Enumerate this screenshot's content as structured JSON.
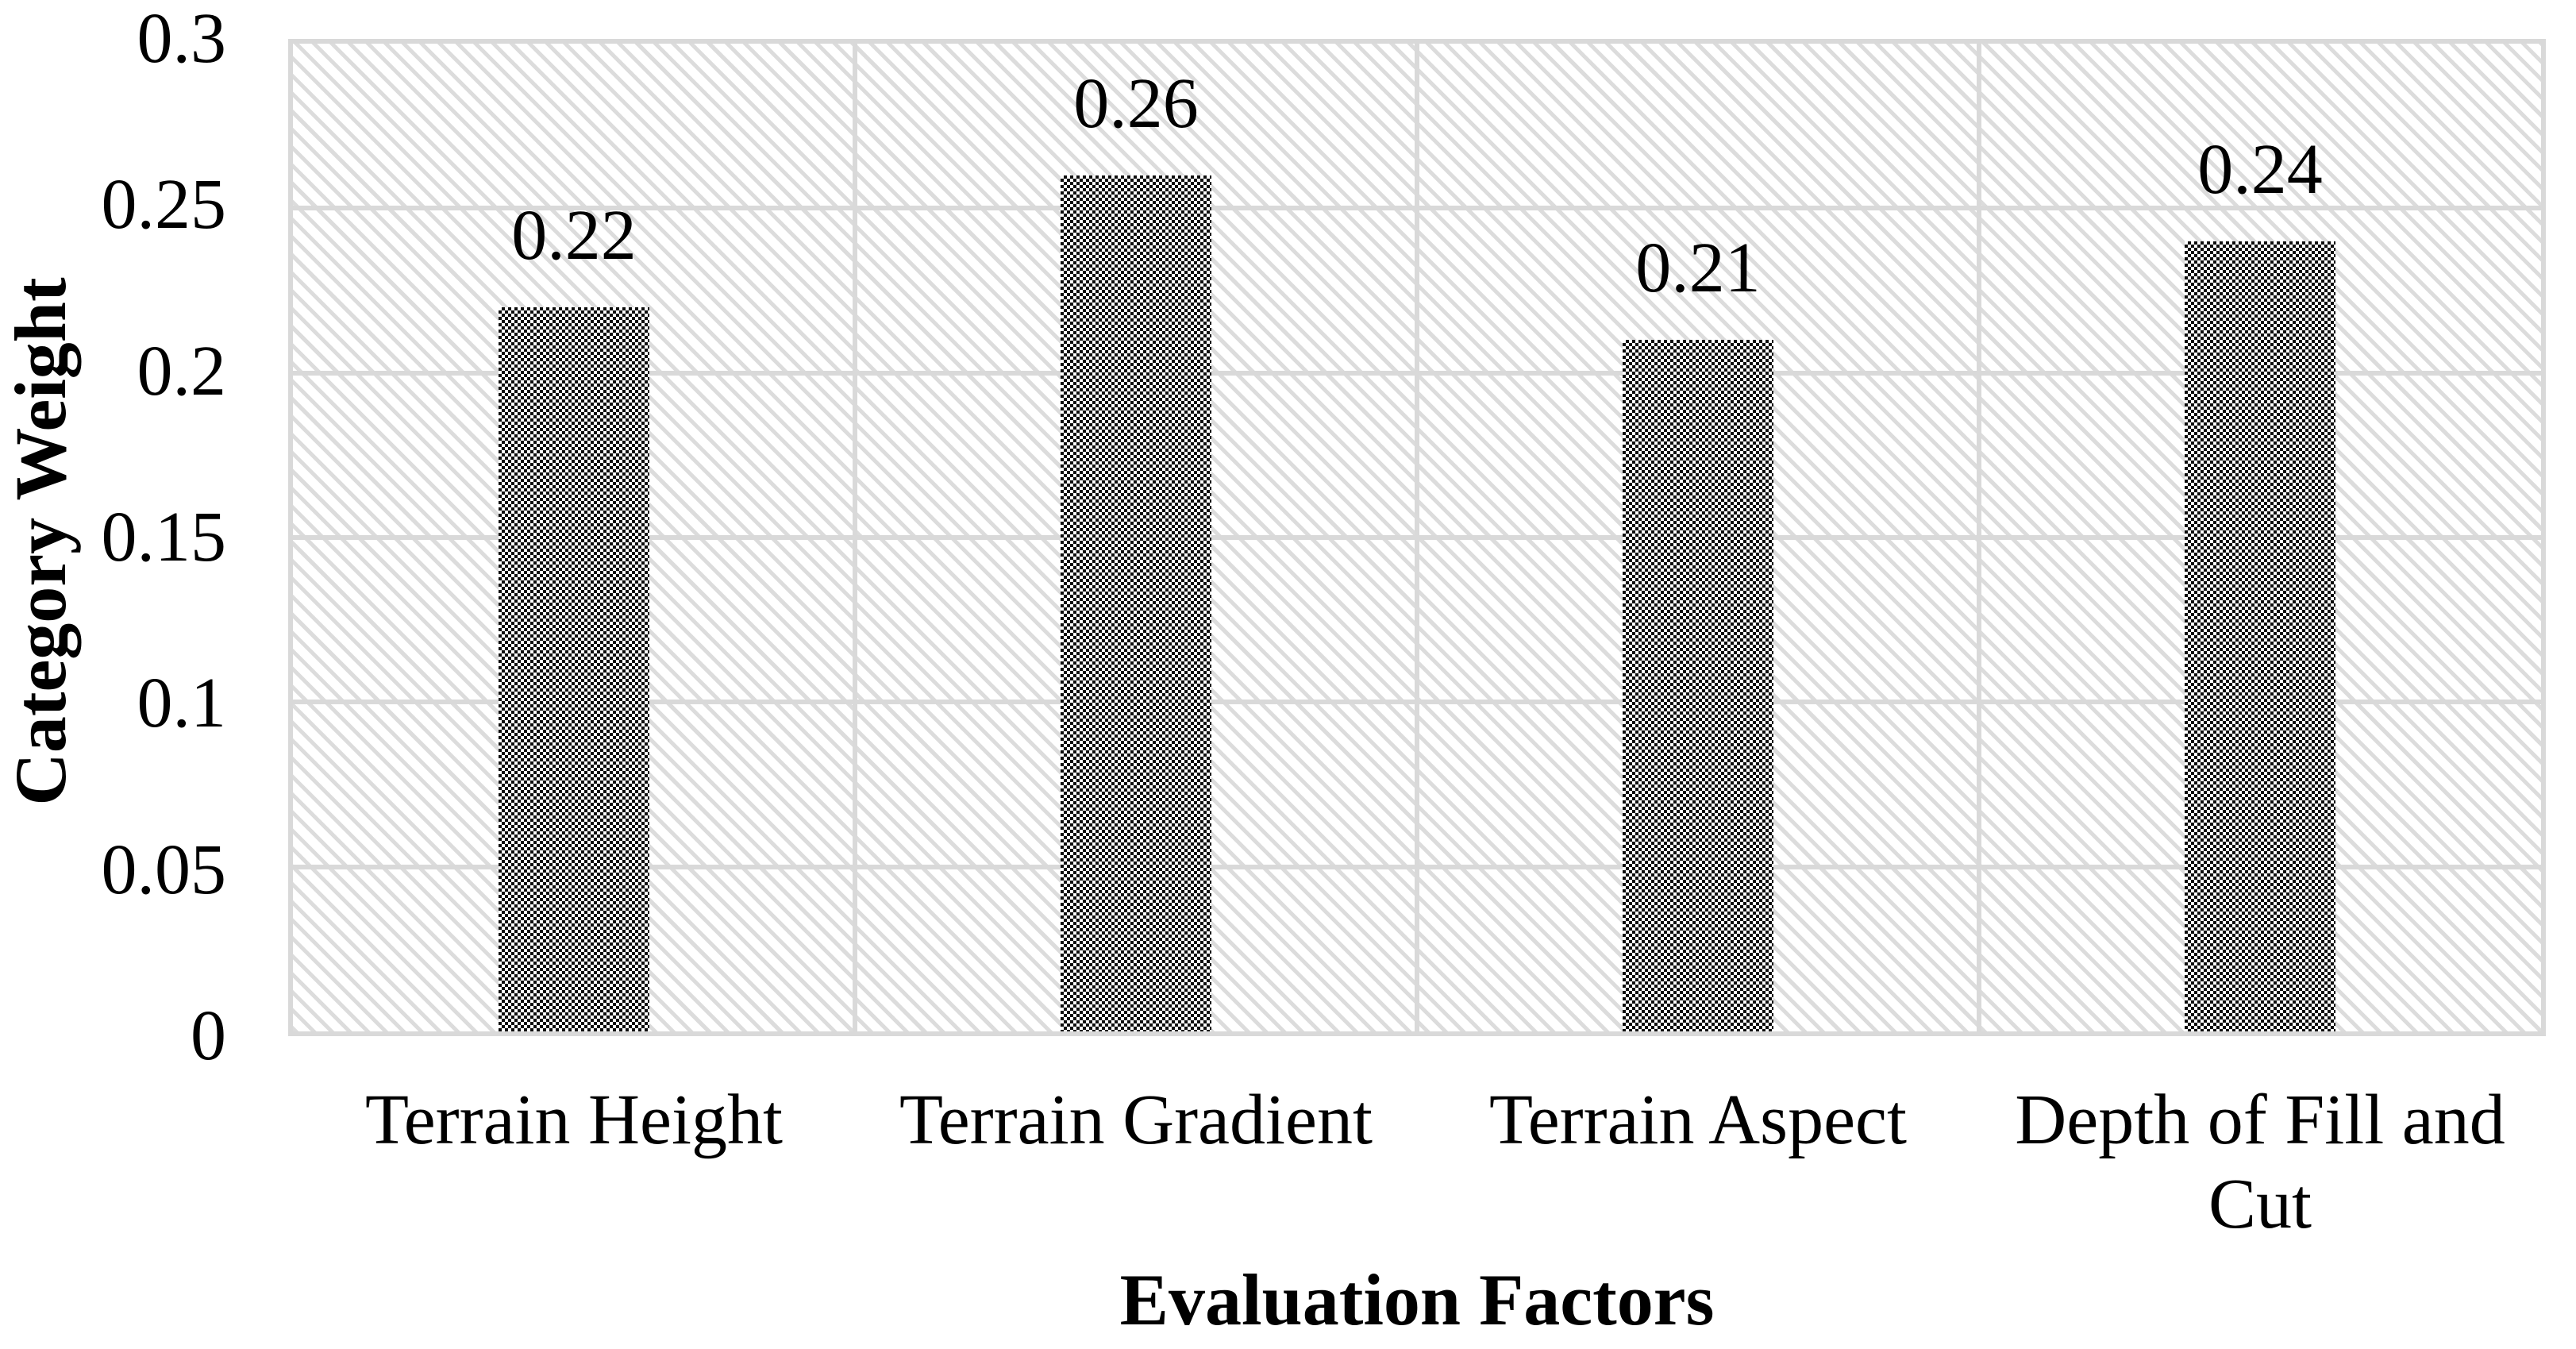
{
  "chart_data": {
    "type": "bar",
    "title": "",
    "categories": [
      "Terrain Height",
      "Terrain Gradient",
      "Terrain Aspect",
      "Depth of Fill and Cut"
    ],
    "values": [
      0.22,
      0.26,
      0.21,
      0.24
    ],
    "data_labels": [
      "0.22",
      "0.26",
      "0.21",
      "0.24"
    ],
    "xlabel": "Evaluation Factors",
    "ylabel": "Category Weight",
    "ylim": [
      0,
      0.3
    ],
    "yticks": [
      {
        "value": 0,
        "label": "0"
      },
      {
        "value": 0.05,
        "label": "0.05"
      },
      {
        "value": 0.1,
        "label": "0.1"
      },
      {
        "value": 0.15,
        "label": "0.15"
      },
      {
        "value": 0.2,
        "label": "0.2"
      },
      {
        "value": 0.25,
        "label": "0.25"
      },
      {
        "value": 0.3,
        "label": "0.3"
      }
    ],
    "grid": true,
    "legend_position": "none",
    "styles": {
      "gridline_color": "#d9d9d9",
      "plot_hatch_color": "#dcdcdc",
      "plot_background": "#ffffff",
      "bar_pattern": "black-white checkerboard",
      "bar_checker_dark": "#0d0d0d",
      "bar_checker_light": "#ffffff",
      "text_color": "#000000"
    }
  }
}
